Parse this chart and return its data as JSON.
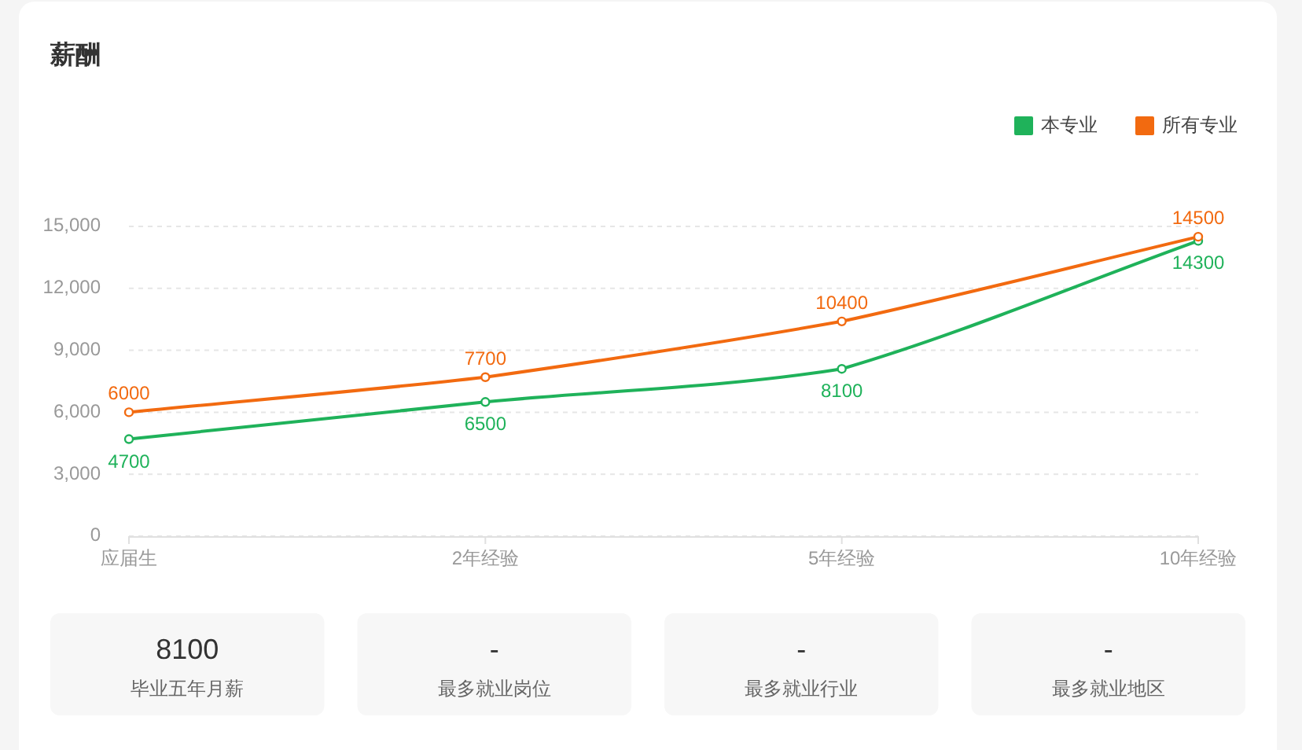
{
  "chart_data": [
    {
      "type": "line",
      "title": "薪酬",
      "categories": [
        "应届生",
        "2年经验",
        "5年经验",
        "10年经验"
      ],
      "series": [
        {
          "name": "本专业",
          "color": "#1fb25a",
          "values": [
            4700,
            6500,
            8100,
            14300
          ]
        },
        {
          "name": "所有专业",
          "color": "#f26a10",
          "values": [
            6000,
            7700,
            10400,
            14500
          ]
        }
      ],
      "ylim": [
        0,
        15000
      ],
      "yticks": [
        0,
        {
          "value": 3000,
          "label": "3,000"
        },
        {
          "value": 6000,
          "label": "6,000"
        },
        {
          "value": 9000,
          "label": "9,000"
        },
        {
          "value": 12000,
          "label": "12,000"
        },
        {
          "value": 15000,
          "label": "15,000"
        }
      ],
      "grid": "y",
      "legend": "top right",
      "marker": "circle",
      "line_style": "solid",
      "data_labels": true
    },
    {
      "type": "other",
      "categories": [
        "毕业五年月薪",
        "最多就业岗位",
        "最多就业行业",
        "最多就业地区"
      ],
      "value_labels": [
        "8100",
        "-",
        "-",
        "-"
      ]
    }
  ]
}
